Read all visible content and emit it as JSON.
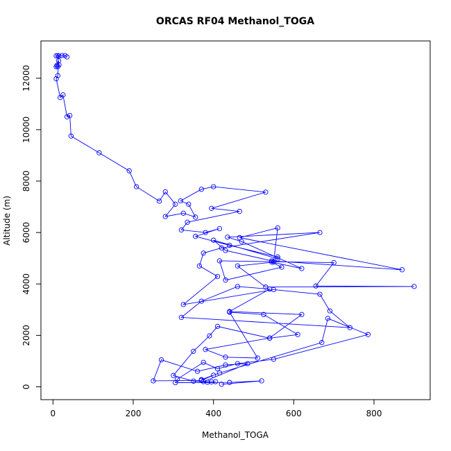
{
  "chart_data": {
    "type": "line",
    "title": "ORCAS RF04 Methanol_TOGA",
    "xlabel": "Methanol_TOGA",
    "ylabel": "Altitude (m)",
    "xlim": [
      -30,
      940
    ],
    "ylim": [
      -500,
      13450
    ],
    "x_ticks": [
      0,
      200,
      400,
      600,
      800
    ],
    "y_ticks": [
      0,
      2000,
      4000,
      6000,
      8000,
      10000,
      12000
    ],
    "grid": false,
    "legend": "none",
    "marker": "open-circle",
    "series_color": "#0000ff",
    "points": [
      [
        35,
        12830
      ],
      [
        30,
        12880
      ],
      [
        22,
        12880
      ],
      [
        12,
        12880
      ],
      [
        8,
        12870
      ],
      [
        15,
        12860
      ],
      [
        10,
        12500
      ],
      [
        8,
        12450
      ],
      [
        12,
        12450
      ],
      [
        15,
        12520
      ],
      [
        14,
        12680
      ],
      [
        12,
        12100
      ],
      [
        8,
        11980
      ],
      [
        18,
        11250
      ],
      [
        25,
        11350
      ],
      [
        35,
        10500
      ],
      [
        42,
        10550
      ],
      [
        45,
        9750
      ],
      [
        115,
        9100
      ],
      [
        190,
        8400
      ],
      [
        208,
        7780
      ],
      [
        265,
        7220
      ],
      [
        280,
        7580
      ],
      [
        305,
        7100
      ],
      [
        280,
        6620
      ],
      [
        325,
        6750
      ],
      [
        355,
        6600
      ],
      [
        338,
        7100
      ],
      [
        318,
        7230
      ],
      [
        370,
        7680
      ],
      [
        400,
        7780
      ],
      [
        530,
        7570
      ],
      [
        395,
        6940
      ],
      [
        465,
        6820
      ],
      [
        335,
        6400
      ],
      [
        320,
        6100
      ],
      [
        380,
        6000
      ],
      [
        415,
        6150
      ],
      [
        355,
        5850
      ],
      [
        440,
        5500
      ],
      [
        560,
        5050
      ],
      [
        560,
        4980
      ],
      [
        400,
        5700
      ],
      [
        430,
        5300
      ],
      [
        545,
        4900
      ],
      [
        870,
        4550
      ],
      [
        465,
        5800
      ],
      [
        560,
        6180
      ],
      [
        550,
        4850
      ],
      [
        460,
        4700
      ],
      [
        530,
        3880
      ],
      [
        900,
        3900
      ],
      [
        655,
        3920
      ],
      [
        700,
        4830
      ],
      [
        415,
        4900
      ],
      [
        430,
        4150
      ],
      [
        570,
        4650
      ],
      [
        545,
        4850
      ],
      [
        620,
        4600
      ],
      [
        470,
        5650
      ],
      [
        435,
        5820
      ],
      [
        665,
        6000
      ],
      [
        420,
        5400
      ],
      [
        375,
        5200
      ],
      [
        365,
        4700
      ],
      [
        410,
        4290
      ],
      [
        325,
        3200
      ],
      [
        550,
        3780
      ],
      [
        665,
        3600
      ],
      [
        690,
        2950
      ],
      [
        740,
        2300
      ],
      [
        320,
        2700
      ],
      [
        370,
        3330
      ],
      [
        460,
        3900
      ],
      [
        540,
        3800
      ],
      [
        440,
        2930
      ],
      [
        620,
        2810
      ],
      [
        540,
        1900
      ],
      [
        380,
        1450
      ],
      [
        430,
        1150
      ],
      [
        510,
        1120
      ],
      [
        440,
        2900
      ],
      [
        525,
        2810
      ],
      [
        610,
        2030
      ],
      [
        540,
        1890
      ],
      [
        410,
        2350
      ],
      [
        390,
        1980
      ],
      [
        350,
        1380
      ],
      [
        300,
        440
      ],
      [
        350,
        220
      ],
      [
        395,
        190
      ],
      [
        405,
        200
      ],
      [
        385,
        180
      ],
      [
        375,
        200
      ],
      [
        485,
        900
      ],
      [
        430,
        850
      ],
      [
        360,
        600
      ],
      [
        270,
        1050
      ],
      [
        250,
        230
      ],
      [
        370,
        250
      ],
      [
        400,
        450
      ],
      [
        370,
        280
      ],
      [
        415,
        540
      ],
      [
        670,
        1720
      ],
      [
        685,
        2660
      ],
      [
        785,
        2030
      ],
      [
        550,
        1070
      ],
      [
        460,
        900
      ],
      [
        410,
        700
      ],
      [
        375,
        950
      ],
      [
        310,
        300
      ],
      [
        305,
        160
      ],
      [
        440,
        170
      ],
      [
        520,
        230
      ],
      [
        420,
        100
      ]
    ]
  }
}
